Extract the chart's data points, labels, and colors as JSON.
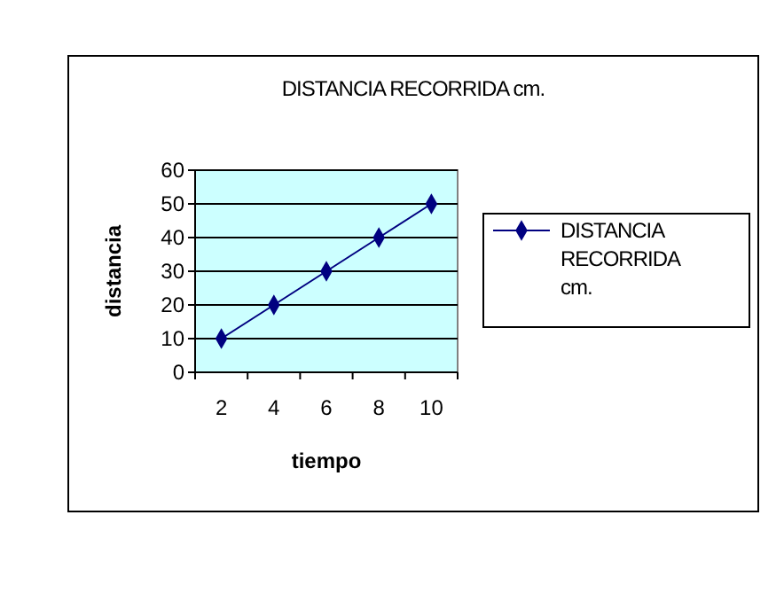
{
  "chart_data": {
    "type": "line",
    "title": "DISTANCIA RECORRIDA cm.",
    "xlabel": "tiempo",
    "ylabel": "distancia",
    "categories": [
      "2",
      "4",
      "6",
      "8",
      "10"
    ],
    "series": [
      {
        "name": "DISTANCIA RECORRIDA cm.",
        "color": "#000080",
        "values": [
          10,
          20,
          30,
          40,
          50
        ]
      }
    ],
    "ylim": [
      0,
      60
    ],
    "yticks": [
      0,
      10,
      20,
      30,
      40,
      50,
      60
    ],
    "grid": "y",
    "legend": "right",
    "marker": "diamond",
    "line_style": "solid"
  }
}
